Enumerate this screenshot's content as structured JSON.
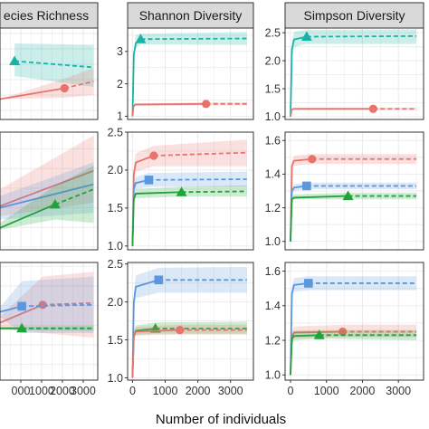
{
  "figure": {
    "xlabel": "Number of individuals",
    "colors": {
      "teal": "#17b3a6",
      "red": "#e8736b",
      "blue": "#5a97dd",
      "green": "#1fa33a",
      "panel_border": "#333333",
      "strip_fill": "#d9d9d9",
      "grid": "#ebebeb"
    }
  },
  "chart_data": [
    {
      "type": "line",
      "panel": "row1-col1",
      "strip": "ecies Richness",
      "xlim": [
        -1000,
        3700
      ],
      "xticks": [],
      "ylim": [
        0.8,
        4.2
      ],
      "yticks": [],
      "series": [
        {
          "color": "teal",
          "marker": "triangle",
          "obs_x": -300,
          "obs_y": 2.95,
          "x": [
            -300,
            3500
          ],
          "y": [
            2.95,
            2.72
          ],
          "lower": [
            2.4,
            2.0
          ],
          "upper": [
            3.6,
            3.55
          ]
        },
        {
          "color": "red",
          "marker": "circle",
          "obs_x": 2100,
          "obs_y": 1.95,
          "x": [
            -1000,
            2100,
            3500
          ],
          "y": [
            1.55,
            1.95,
            2.2
          ],
          "lower": [
            1.55,
            1.6,
            1.7
          ],
          "upper": [
            1.55,
            2.3,
            2.7
          ]
        }
      ]
    },
    {
      "type": "line",
      "panel": "row1-col2",
      "strip": "Shannon Diversity",
      "xlim": [
        -150,
        3700
      ],
      "xticks": [],
      "ylim": [
        0.9,
        3.75
      ],
      "yticks": [
        "1",
        "2",
        "3"
      ],
      "ytick_values": [
        1,
        2,
        3
      ],
      "series": [
        {
          "color": "teal",
          "marker": "triangle",
          "obs_x": 250,
          "obs_y": 3.38,
          "x": [
            0,
            40,
            100,
            250,
            3500
          ],
          "y": [
            1.0,
            2.9,
            3.25,
            3.38,
            3.4
          ],
          "lower": [
            1.0,
            2.75,
            3.1,
            3.22,
            3.2
          ],
          "upper": [
            1.0,
            3.1,
            3.5,
            3.55,
            3.6
          ]
        },
        {
          "color": "red",
          "marker": "circle",
          "obs_x": 2250,
          "obs_y": 1.38,
          "x": [
            0,
            30,
            80,
            2250,
            3500
          ],
          "y": [
            1.0,
            1.3,
            1.36,
            1.38,
            1.38
          ],
          "lower": [
            1.0,
            1.28,
            1.32,
            1.33,
            1.33
          ],
          "upper": [
            1.0,
            1.32,
            1.4,
            1.43,
            1.43
          ]
        }
      ]
    },
    {
      "type": "line",
      "panel": "row1-col3",
      "strip": "Simpson Diversity",
      "xlim": [
        -150,
        3700
      ],
      "xticks": [],
      "ylim": [
        0.95,
        2.6
      ],
      "yticks": [
        "1.0",
        "1.5",
        "2.0",
        "2.5"
      ],
      "ytick_values": [
        1.0,
        1.5,
        2.0,
        2.5
      ],
      "series": [
        {
          "color": "teal",
          "marker": "triangle",
          "obs_x": 450,
          "obs_y": 2.43,
          "x": [
            0,
            40,
            100,
            450,
            3500
          ],
          "y": [
            1.0,
            2.2,
            2.38,
            2.43,
            2.44
          ],
          "lower": [
            1.0,
            2.05,
            2.25,
            2.3,
            2.3
          ],
          "upper": [
            1.0,
            2.35,
            2.52,
            2.55,
            2.56
          ]
        },
        {
          "color": "red",
          "marker": "circle",
          "obs_x": 2300,
          "obs_y": 1.14,
          "x": [
            0,
            30,
            80,
            2300,
            3500
          ],
          "y": [
            1.0,
            1.12,
            1.14,
            1.14,
            1.14
          ],
          "lower": [
            1.0,
            1.11,
            1.12,
            1.12,
            1.12
          ],
          "upper": [
            1.0,
            1.13,
            1.16,
            1.16,
            1.16
          ]
        }
      ]
    },
    {
      "type": "line",
      "panel": "row2-col1",
      "strip": "",
      "xlim": [
        -1000,
        3700
      ],
      "xticks": [],
      "ylim": [
        0.5,
        4.0
      ],
      "yticks": [],
      "series": [
        {
          "color": "red",
          "marker": "circle",
          "x": [
            -1000,
            3500
          ],
          "y": [
            1.8,
            2.85
          ],
          "lower": [
            1.5,
            1.9
          ],
          "upper": [
            2.3,
            3.9
          ]
        },
        {
          "color": "blue",
          "marker": "square",
          "x": [
            -1000,
            3500
          ],
          "y": [
            1.75,
            2.45
          ],
          "lower": [
            1.4,
            1.6
          ],
          "upper": [
            2.1,
            3.1
          ]
        },
        {
          "color": "green",
          "marker": "triangle",
          "obs_x": 1650,
          "obs_y": 1.85,
          "x": [
            -1000,
            1650,
            3500
          ],
          "y": [
            1.15,
            1.85,
            2.3
          ],
          "lower": [
            1.1,
            1.4,
            1.3
          ],
          "upper": [
            1.3,
            2.4,
            3.0
          ]
        }
      ]
    },
    {
      "type": "line",
      "panel": "row2-col2",
      "strip": "",
      "xlim": [
        -150,
        3700
      ],
      "xticks": [],
      "ylim": [
        0.95,
        2.5
      ],
      "yticks": [
        "1.0",
        "1.5",
        "2.0",
        "2.5"
      ],
      "ytick_values": [
        1.0,
        1.5,
        2.0,
        2.5
      ],
      "series": [
        {
          "color": "red",
          "marker": "circle",
          "obs_x": 650,
          "obs_y": 2.19,
          "x": [
            0,
            40,
            100,
            650,
            3500
          ],
          "y": [
            1.0,
            1.95,
            2.1,
            2.19,
            2.23
          ],
          "lower": [
            1.0,
            1.85,
            1.98,
            2.05,
            2.05
          ],
          "upper": [
            1.0,
            2.05,
            2.22,
            2.32,
            2.4
          ]
        },
        {
          "color": "blue",
          "marker": "square",
          "obs_x": 500,
          "obs_y": 1.87,
          "x": [
            0,
            40,
            100,
            500,
            3500
          ],
          "y": [
            1.0,
            1.75,
            1.83,
            1.87,
            1.88
          ],
          "lower": [
            1.0,
            1.68,
            1.75,
            1.78,
            1.78
          ],
          "upper": [
            1.0,
            1.82,
            1.91,
            1.96,
            1.98
          ]
        },
        {
          "color": "green",
          "marker": "triangle",
          "obs_x": 1500,
          "obs_y": 1.71,
          "x": [
            0,
            40,
            100,
            1500,
            3500
          ],
          "y": [
            1.0,
            1.62,
            1.69,
            1.71,
            1.72
          ],
          "lower": [
            1.0,
            1.58,
            1.63,
            1.65,
            1.65
          ],
          "upper": [
            1.0,
            1.66,
            1.75,
            1.78,
            1.8
          ]
        }
      ]
    },
    {
      "type": "line",
      "panel": "row2-col3",
      "strip": "",
      "xlim": [
        -150,
        3700
      ],
      "xticks": [],
      "ylim": [
        0.95,
        1.65
      ],
      "yticks": [
        "1.0",
        "1.2",
        "1.4",
        "1.6"
      ],
      "ytick_values": [
        1.0,
        1.2,
        1.4,
        1.6
      ],
      "series": [
        {
          "color": "red",
          "marker": "circle",
          "obs_x": 600,
          "obs_y": 1.49,
          "x": [
            0,
            40,
            100,
            600,
            3500
          ],
          "y": [
            1.0,
            1.45,
            1.48,
            1.49,
            1.49
          ],
          "lower": [
            1.0,
            1.42,
            1.45,
            1.46,
            1.46
          ],
          "upper": [
            1.0,
            1.48,
            1.51,
            1.52,
            1.52
          ]
        },
        {
          "color": "blue",
          "marker": "square",
          "obs_x": 450,
          "obs_y": 1.33,
          "x": [
            0,
            40,
            100,
            450,
            3500
          ],
          "y": [
            1.0,
            1.3,
            1.32,
            1.33,
            1.33
          ],
          "lower": [
            1.0,
            1.28,
            1.3,
            1.31,
            1.31
          ],
          "upper": [
            1.0,
            1.32,
            1.34,
            1.35,
            1.35
          ]
        },
        {
          "color": "green",
          "marker": "triangle",
          "obs_x": 1600,
          "obs_y": 1.27,
          "x": [
            0,
            40,
            100,
            1600,
            3500
          ],
          "y": [
            1.0,
            1.25,
            1.26,
            1.27,
            1.27
          ],
          "lower": [
            1.0,
            1.24,
            1.25,
            1.25,
            1.25
          ],
          "upper": [
            1.0,
            1.26,
            1.28,
            1.29,
            1.29
          ]
        }
      ]
    },
    {
      "type": "line",
      "panel": "row3-col1",
      "strip": "",
      "xlim": [
        -1000,
        3700
      ],
      "xticks": [
        "000",
        "1000",
        "2000",
        "3000"
      ],
      "xtick_values": [
        0,
        1000,
        2000,
        3000
      ],
      "ylim": [
        0.5,
        3.0
      ],
      "yticks": [],
      "series": [
        {
          "color": "red",
          "marker": "circle",
          "obs_x": 1050,
          "obs_y": 2.1,
          "x": [
            -1000,
            1050,
            3500
          ],
          "y": [
            1.72,
            2.1,
            2.14
          ],
          "lower": [
            1.6,
            1.5,
            1.4
          ],
          "upper": [
            1.85,
            2.7,
            2.8
          ]
        },
        {
          "color": "blue",
          "marker": "square",
          "obs_x": 50,
          "obs_y": 2.07,
          "x": [
            -1000,
            50,
            3500
          ],
          "y": [
            1.95,
            2.07,
            2.1
          ],
          "lower": [
            1.85,
            1.5,
            1.5
          ],
          "upper": [
            2.05,
            2.6,
            2.7
          ]
        },
        {
          "color": "green",
          "marker": "triangle",
          "obs_x": 50,
          "obs_y": 1.6,
          "x": [
            -1000,
            50,
            3500
          ],
          "y": [
            1.6,
            1.6,
            1.6
          ],
          "lower": [
            1.57,
            1.56,
            1.55
          ],
          "upper": [
            1.63,
            1.64,
            1.65
          ]
        }
      ]
    },
    {
      "type": "line",
      "panel": "row3-col2",
      "strip": "",
      "xlim": [
        -150,
        3700
      ],
      "xticks": [
        "0",
        "1000",
        "2000",
        "3000"
      ],
      "xtick_values": [
        0,
        1000,
        2000,
        3000
      ],
      "ylim": [
        0.97,
        2.52
      ],
      "yticks": [
        "1.0",
        "1.5",
        "2.0",
        "2.5"
      ],
      "ytick_values": [
        1.0,
        1.5,
        2.0,
        2.5
      ],
      "series": [
        {
          "color": "blue",
          "marker": "square",
          "obs_x": 800,
          "obs_y": 2.29,
          "x": [
            0,
            40,
            100,
            800,
            3500
          ],
          "y": [
            1.0,
            2.0,
            2.2,
            2.29,
            2.29
          ],
          "lower": [
            1.0,
            1.9,
            2.05,
            2.12,
            2.12
          ],
          "upper": [
            1.0,
            2.1,
            2.35,
            2.45,
            2.46
          ]
        },
        {
          "color": "green",
          "marker": "triangle",
          "obs_x": 700,
          "obs_y": 1.65,
          "x": [
            0,
            40,
            100,
            700,
            3500
          ],
          "y": [
            1.0,
            1.55,
            1.62,
            1.65,
            1.65
          ],
          "lower": [
            1.0,
            1.5,
            1.56,
            1.58,
            1.58
          ],
          "upper": [
            1.0,
            1.6,
            1.69,
            1.73,
            1.74
          ]
        },
        {
          "color": "red",
          "marker": "circle",
          "obs_x": 1450,
          "obs_y": 1.63,
          "x": [
            0,
            40,
            100,
            1450,
            3500
          ],
          "y": [
            1.0,
            1.55,
            1.61,
            1.63,
            1.63
          ],
          "lower": [
            1.0,
            1.5,
            1.56,
            1.57,
            1.57
          ],
          "upper": [
            1.0,
            1.6,
            1.67,
            1.7,
            1.7
          ]
        }
      ]
    },
    {
      "type": "line",
      "panel": "row3-col3",
      "strip": "",
      "xlim": [
        -150,
        3700
      ],
      "xticks": [
        "0",
        "1000",
        "2000",
        "3000"
      ],
      "xtick_values": [
        0,
        1000,
        2000,
        3000
      ],
      "ylim": [
        0.97,
        1.65
      ],
      "yticks": [
        "1.0",
        "1.2",
        "1.4",
        "1.6"
      ],
      "ytick_values": [
        1.0,
        1.2,
        1.4,
        1.6
      ],
      "series": [
        {
          "color": "blue",
          "marker": "square",
          "obs_x": 500,
          "obs_y": 1.53,
          "x": [
            0,
            40,
            100,
            500,
            3500
          ],
          "y": [
            1.0,
            1.47,
            1.52,
            1.53,
            1.53
          ],
          "lower": [
            1.0,
            1.43,
            1.48,
            1.49,
            1.49
          ],
          "upper": [
            1.0,
            1.51,
            1.56,
            1.57,
            1.57
          ]
        },
        {
          "color": "red",
          "marker": "circle",
          "obs_x": 1450,
          "obs_y": 1.25,
          "x": [
            0,
            40,
            100,
            1450,
            3500
          ],
          "y": [
            1.0,
            1.22,
            1.245,
            1.25,
            1.25
          ],
          "lower": [
            1.0,
            1.19,
            1.21,
            1.22,
            1.22
          ],
          "upper": [
            1.0,
            1.25,
            1.28,
            1.29,
            1.29
          ]
        },
        {
          "color": "green",
          "marker": "triangle",
          "obs_x": 800,
          "obs_y": 1.23,
          "x": [
            0,
            40,
            100,
            800,
            3500
          ],
          "y": [
            1.0,
            1.21,
            1.225,
            1.23,
            1.23
          ],
          "lower": [
            1.0,
            1.18,
            1.2,
            1.21,
            1.2
          ],
          "upper": [
            1.0,
            1.24,
            1.255,
            1.26,
            1.26
          ]
        }
      ]
    }
  ]
}
